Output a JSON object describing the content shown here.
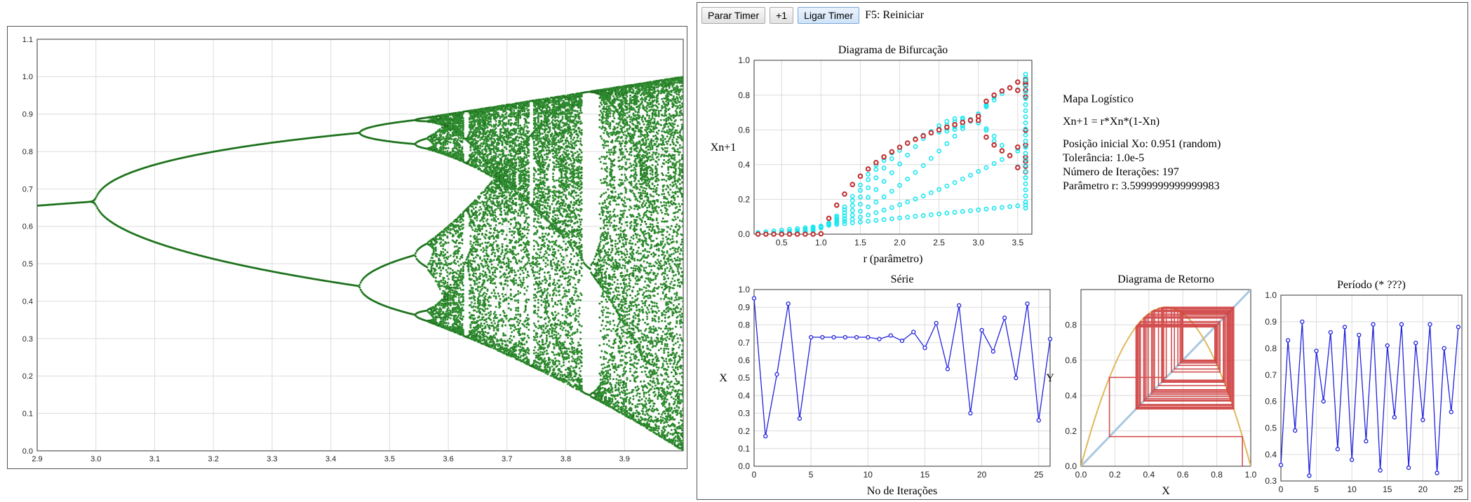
{
  "toolbar": {
    "stop_timer_label": "Parar Timer",
    "step_label": "+1",
    "start_timer_label": "Ligar Timer",
    "restart_hint": "F5: Reiniciar"
  },
  "info": {
    "title": "Mapa Logístico",
    "formula": "Xn+1 = r*Xn*(1-Xn)",
    "initial_position": "Posição inicial Xo: 0.951 (random)",
    "tolerance": "Tolerância: 1.0e-5",
    "iterations": "Número de Iterações: 197",
    "parameter": "Parâmetro r: 3.5999999999999983"
  },
  "colors": {
    "bifurcation_points": "#2e8b2e",
    "cyan_points": "#19e6f0",
    "red_points": "#c0282a",
    "series_line": "#2222dd",
    "return_curve": "#e0b85c",
    "diagonal": "#aac8e0",
    "cobweb": "#cc3333"
  },
  "chart_data": [
    {
      "id": "bifurcation-full",
      "type": "scatter",
      "title": "",
      "xlabel": "",
      "ylabel": "",
      "xlim": [
        2.9,
        4.0
      ],
      "ylim": [
        0.0,
        1.1
      ],
      "x_ticks": [
        "2.9",
        "3.0",
        "3.1",
        "3.2",
        "3.3",
        "3.4",
        "3.5",
        "3.6",
        "3.7",
        "3.8",
        "3.9"
      ],
      "y_ticks": [
        "0.0",
        "0.1",
        "0.2",
        "0.3",
        "0.4",
        "0.5",
        "0.6",
        "0.7",
        "0.8",
        "0.9",
        "1.0",
        "1.1"
      ],
      "grid": true,
      "legend": "none",
      "series": [
        {
          "values": "x_{n+1} = r*x_n*(1-x_n) attractor, r from 2.9 to 4.0"
        }
      ]
    },
    {
      "id": "bifurcation-small",
      "type": "scatter",
      "title": "Diagrama de Bifurcação",
      "xlabel": "r (parâmetro)",
      "ylabel": "Xn+1",
      "xlim": [
        0.15,
        3.68
      ],
      "ylim": [
        0.0,
        1.0
      ],
      "x_ticks": [
        "0.5",
        "1.0",
        "1.5",
        "2.0",
        "2.5",
        "3.0",
        "3.5"
      ],
      "y_ticks": [
        "0.0",
        "0.2",
        "0.4",
        "0.6",
        "0.8",
        "1.0"
      ],
      "grid": true,
      "legend": "none",
      "series": [
        {
          "r_values": [
            0.2,
            0.3,
            0.4,
            0.5,
            0.6,
            0.7,
            0.8,
            0.9,
            1.0,
            1.1,
            1.2,
            1.3,
            1.4,
            1.5,
            1.6,
            1.7,
            1.8,
            1.9,
            2.0,
            2.1,
            2.2,
            2.3,
            2.4,
            2.5,
            2.6,
            2.7,
            2.8,
            2.9,
            3.0,
            3.1,
            3.2,
            3.3,
            3.4,
            3.5,
            3.6
          ]
        }
      ]
    },
    {
      "id": "series",
      "type": "line",
      "title": "Série",
      "xlabel": "No de Iterações",
      "ylabel": "X",
      "xlim": [
        0,
        26
      ],
      "ylim": [
        0.0,
        1.0
      ],
      "x_ticks": [
        "0",
        "5",
        "10",
        "15",
        "20",
        "25"
      ],
      "y_ticks": [
        "0.0",
        "0.1",
        "0.2",
        "0.3",
        "0.4",
        "0.5",
        "0.6",
        "0.7",
        "0.8",
        "0.9",
        "1.0"
      ],
      "grid": true,
      "legend": "none",
      "x": [
        0,
        1,
        2,
        3,
        4,
        5,
        6,
        7,
        8,
        9,
        10,
        11,
        12,
        13,
        14,
        15,
        16,
        17,
        18,
        19,
        20,
        21,
        22,
        23,
        24,
        25,
        26
      ],
      "values": [
        0.951,
        0.17,
        0.52,
        0.92,
        0.27,
        0.73,
        0.73,
        0.73,
        0.73,
        0.73,
        0.73,
        0.72,
        0.74,
        0.71,
        0.76,
        0.67,
        0.81,
        0.55,
        0.91,
        0.3,
        0.77,
        0.65,
        0.84,
        0.5,
        0.92,
        0.26,
        0.72
      ]
    },
    {
      "id": "return",
      "type": "line",
      "title": "Diagrama de Retorno",
      "xlabel": "X",
      "ylabel": "Y",
      "xlim": [
        0.0,
        1.0
      ],
      "ylim": [
        0.0,
        1.0
      ],
      "x_ticks": [
        "0.0",
        "0.2",
        "0.4",
        "0.6",
        "0.8",
        "1.0"
      ],
      "y_ticks": [
        "0.0",
        "0.2",
        "0.4",
        "0.6",
        "0.8"
      ],
      "grid": true,
      "legend": "none",
      "r": 3.6,
      "x0": 0.951,
      "cobweb_steps": 14
    },
    {
      "id": "period",
      "type": "line",
      "title": "Período (* ???)",
      "xlabel": "",
      "ylabel": "",
      "xlim": [
        0,
        25.5
      ],
      "ylim": [
        0.3,
        1.0
      ],
      "x_ticks": [
        "0",
        "5",
        "10",
        "15",
        "20",
        "25"
      ],
      "y_ticks": [
        "0.3",
        "0.4",
        "0.5",
        "0.6",
        "0.7",
        "0.8",
        "0.9",
        "1.0"
      ],
      "grid": true,
      "legend": "none",
      "x": [
        0,
        1,
        2,
        3,
        4,
        5,
        6,
        7,
        8,
        9,
        10,
        11,
        12,
        13,
        14,
        15,
        16,
        17,
        18,
        19,
        20,
        21,
        22,
        23,
        24,
        25
      ],
      "values": [
        0.36,
        0.83,
        0.49,
        0.9,
        0.32,
        0.79,
        0.6,
        0.86,
        0.42,
        0.88,
        0.38,
        0.85,
        0.45,
        0.89,
        0.34,
        0.81,
        0.54,
        0.89,
        0.35,
        0.82,
        0.53,
        0.89,
        0.33,
        0.8,
        0.56,
        0.88
      ]
    }
  ]
}
